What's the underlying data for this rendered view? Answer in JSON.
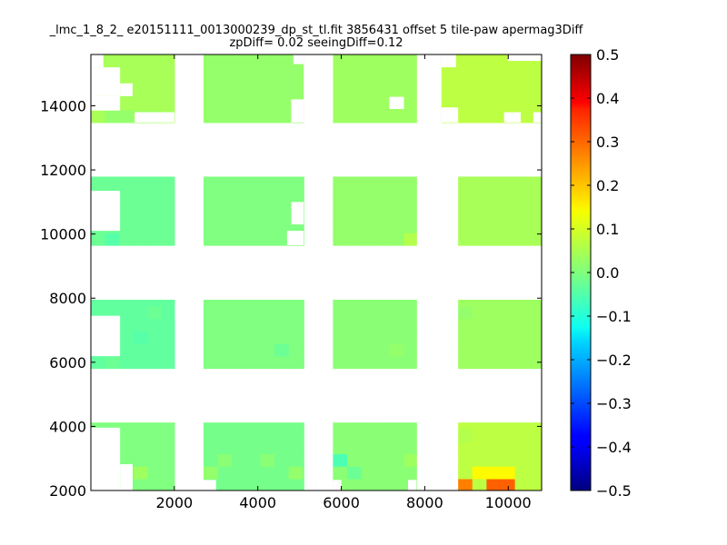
{
  "chart_data": {
    "type": "heatmap",
    "title": "_lmc_1_8_2_ e20151111_0013000239_dp_st_tl.fit 3856431 offset 5 tile-paw apermag3Diff",
    "subtitle": "zpDiff= 0.02 seeingDiff=0.12",
    "xlabel": "",
    "ylabel": "",
    "xlim": [
      0,
      10800
    ],
    "ylim": [
      2000,
      15600
    ],
    "x_ticks": [
      2000,
      4000,
      6000,
      8000,
      10000
    ],
    "y_ticks": [
      2000,
      4000,
      6000,
      8000,
      10000,
      12000,
      14000
    ],
    "colorbar": {
      "colormap": "jet",
      "range": [
        -0.5,
        0.5
      ],
      "ticks": [
        "0.5",
        "0.4",
        "0.3",
        "0.2",
        "0.1",
        "0.0",
        "−0.1",
        "−0.2",
        "−0.3",
        "−0.4",
        "−0.5"
      ]
    },
    "cell_size": [
      340,
      390
    ],
    "default_value": 0.02,
    "detectors": [
      {
        "x": [
          0,
          2000
        ],
        "y": [
          1980,
          4120
        ],
        "value": 0.0
      },
      {
        "x": [
          2700,
          5100
        ],
        "y": [
          1980,
          4120
        ],
        "value": -0.01
      },
      {
        "x": [
          5800,
          7800
        ],
        "y": [
          1980,
          4120
        ],
        "value": 0.01
      },
      {
        "x": [
          8800,
          10800
        ],
        "y": [
          1980,
          4120
        ],
        "value": 0.06
      },
      {
        "x": [
          0,
          2000
        ],
        "y": [
          5810,
          7950
        ],
        "value": -0.03
      },
      {
        "x": [
          2700,
          5100
        ],
        "y": [
          5810,
          7950
        ],
        "value": 0.0
      },
      {
        "x": [
          5800,
          7800
        ],
        "y": [
          5810,
          7950
        ],
        "value": 0.01
      },
      {
        "x": [
          8800,
          10800
        ],
        "y": [
          5810,
          7950
        ],
        "value": 0.03
      },
      {
        "x": [
          0,
          2000
        ],
        "y": [
          9650,
          11790
        ],
        "value": -0.02
      },
      {
        "x": [
          2700,
          5100
        ],
        "y": [
          9650,
          11790
        ],
        "value": 0.0
      },
      {
        "x": [
          5800,
          7800
        ],
        "y": [
          9650,
          11790
        ],
        "value": 0.02
      },
      {
        "x": [
          8800,
          10800
        ],
        "y": [
          9650,
          11790
        ],
        "value": 0.04
      },
      {
        "x": [
          0,
          2000
        ],
        "y": [
          13480,
          15620
        ],
        "value": 0.04
      },
      {
        "x": [
          2700,
          5100
        ],
        "y": [
          13480,
          15620
        ],
        "value": 0.02
      },
      {
        "x": [
          5800,
          7800
        ],
        "y": [
          13480,
          15620
        ],
        "value": 0.03
      },
      {
        "x": [
          8400,
          10800
        ],
        "y": [
          13480,
          15620
        ],
        "value": 0.06
      }
    ],
    "masked_regions": [
      {
        "x": [
          0,
          300
        ],
        "y": [
          15200,
          15620
        ]
      },
      {
        "x": [
          0,
          700
        ],
        "y": [
          14300,
          15200
        ]
      },
      {
        "x": [
          0,
          700
        ],
        "y": [
          13850,
          14300
        ]
      },
      {
        "x": [
          1050,
          2000
        ],
        "y": [
          13480,
          13800
        ]
      },
      {
        "x": [
          700,
          1000
        ],
        "y": [
          14300,
          14700
        ]
      },
      {
        "x": [
          4850,
          5100
        ],
        "y": [
          15300,
          15620
        ]
      },
      {
        "x": [
          5100,
          5800
        ],
        "y": [
          13480,
          15620
        ]
      },
      {
        "x": [
          4800,
          5100
        ],
        "y": [
          13480,
          14200
        ]
      },
      {
        "x": [
          7150,
          7500
        ],
        "y": [
          13900,
          14280
        ]
      },
      {
        "x": [
          8400,
          8750
        ],
        "y": [
          15200,
          15620
        ]
      },
      {
        "x": [
          8400,
          8800
        ],
        "y": [
          13480,
          13950
        ]
      },
      {
        "x": [
          10000,
          10800
        ],
        "y": [
          15400,
          15620
        ]
      },
      {
        "x": [
          9900,
          10300
        ],
        "y": [
          13480,
          13800
        ]
      },
      {
        "x": [
          10600,
          10800
        ],
        "y": [
          13480,
          13800
        ]
      },
      {
        "x": [
          0,
          700
        ],
        "y": [
          10100,
          11350
        ]
      },
      {
        "x": [
          4800,
          5100
        ],
        "y": [
          10300,
          11000
        ]
      },
      {
        "x": [
          4700,
          5100
        ],
        "y": [
          9650,
          10100
        ]
      },
      {
        "x": [
          0,
          700
        ],
        "y": [
          6190,
          7450
        ]
      },
      {
        "x": [
          0,
          700
        ],
        "y": [
          1980,
          3960
        ]
      },
      {
        "x": [
          700,
          1000
        ],
        "y": [
          2000,
          2820
        ]
      },
      {
        "x": [
          2700,
          3000
        ],
        "y": [
          1980,
          2330
        ]
      },
      {
        "x": [
          5800,
          6000
        ],
        "y": [
          1980,
          2330
        ]
      },
      {
        "x": [
          7600,
          7800
        ],
        "y": [
          1980,
          2330
        ]
      }
    ],
    "cell_values": [
      {
        "x": 8800,
        "y": 1980,
        "value": 0.25
      },
      {
        "x": 9140,
        "y": 2370,
        "value": 0.13
      },
      {
        "x": 9480,
        "y": 2370,
        "value": 0.13
      },
      {
        "x": 9820,
        "y": 2370,
        "value": 0.13
      },
      {
        "x": 9480,
        "y": 1980,
        "value": 0.28
      },
      {
        "x": 9820,
        "y": 1980,
        "value": 0.28
      },
      {
        "x": 10460,
        "y": 1980,
        "value": -0.07
      },
      {
        "x": 10120,
        "y": 2370,
        "value": 0.08
      },
      {
        "x": 10460,
        "y": 2370,
        "value": 0.09
      },
      {
        "x": 10460,
        "y": 2760,
        "value": 0.1
      },
      {
        "x": 10460,
        "y": 3150,
        "value": 0.08
      },
      {
        "x": 10120,
        "y": 3150,
        "value": 0.07
      },
      {
        "x": 10120,
        "y": 3540,
        "value": 0.09
      },
      {
        "x": 1020,
        "y": 2370,
        "value": 0.03
      },
      {
        "x": 340,
        "y": 3960,
        "value": 0.04
      },
      {
        "x": 1020,
        "y": 3570,
        "value": 0.03
      },
      {
        "x": 1360,
        "y": 3180,
        "value": 0.02
      },
      {
        "x": 2700,
        "y": 2370,
        "value": 0.02
      },
      {
        "x": 3040,
        "y": 2760,
        "value": 0.01
      },
      {
        "x": 3720,
        "y": 3180,
        "value": -0.02
      },
      {
        "x": 4060,
        "y": 2760,
        "value": 0.01
      },
      {
        "x": 4400,
        "y": 3570,
        "value": 0.0
      },
      {
        "x": 4740,
        "y": 2370,
        "value": 0.02
      },
      {
        "x": 5800,
        "y": 2760,
        "value": -0.05
      },
      {
        "x": 6140,
        "y": 2370,
        "value": -0.02
      },
      {
        "x": 6480,
        "y": 3180,
        "value": 0.0
      },
      {
        "x": 7160,
        "y": 3570,
        "value": 0.03
      },
      {
        "x": 7500,
        "y": 2760,
        "value": 0.03
      },
      {
        "x": 8800,
        "y": 3540,
        "value": 0.05
      },
      {
        "x": 9480,
        "y": 3540,
        "value": 0.06
      },
      {
        "x": 340,
        "y": 5810,
        "value": -0.02
      },
      {
        "x": 1020,
        "y": 6590,
        "value": -0.04
      },
      {
        "x": 1360,
        "y": 7370,
        "value": -0.02
      },
      {
        "x": 2700,
        "y": 7430,
        "value": -0.02
      },
      {
        "x": 3040,
        "y": 6600,
        "value": 0.01
      },
      {
        "x": 3720,
        "y": 6600,
        "value": 0.02
      },
      {
        "x": 4400,
        "y": 6200,
        "value": -0.02
      },
      {
        "x": 4740,
        "y": 7550,
        "value": 0.06
      },
      {
        "x": 6140,
        "y": 6600,
        "value": 0.0
      },
      {
        "x": 6820,
        "y": 7000,
        "value": 0.0
      },
      {
        "x": 7160,
        "y": 6200,
        "value": 0.02
      },
      {
        "x": 8800,
        "y": 7370,
        "value": 0.02
      },
      {
        "x": 9480,
        "y": 6590,
        "value": 0.03
      },
      {
        "x": 10120,
        "y": 6590,
        "value": 0.05
      },
      {
        "x": 10460,
        "y": 6200,
        "value": 0.06
      },
      {
        "x": 10120,
        "y": 7370,
        "value": 0.04
      },
      {
        "x": 340,
        "y": 9650,
        "value": -0.04
      },
      {
        "x": 680,
        "y": 11400,
        "value": -0.03
      },
      {
        "x": 1020,
        "y": 10050,
        "value": -0.03
      },
      {
        "x": 1360,
        "y": 10800,
        "value": -0.02
      },
      {
        "x": 2700,
        "y": 10440,
        "value": 0.0
      },
      {
        "x": 3040,
        "y": 11020,
        "value": 0.01
      },
      {
        "x": 3720,
        "y": 11000,
        "value": -0.02
      },
      {
        "x": 4060,
        "y": 11400,
        "value": -0.03
      },
      {
        "x": 4400,
        "y": 10400,
        "value": -0.01
      },
      {
        "x": 4740,
        "y": 11380,
        "value": 0.03
      },
      {
        "x": 5800,
        "y": 10050,
        "value": 0.03
      },
      {
        "x": 6140,
        "y": 11000,
        "value": 0.03
      },
      {
        "x": 6480,
        "y": 10400,
        "value": 0.01
      },
      {
        "x": 7160,
        "y": 10800,
        "value": 0.04
      },
      {
        "x": 7500,
        "y": 9650,
        "value": 0.05
      },
      {
        "x": 8800,
        "y": 11000,
        "value": 0.03
      },
      {
        "x": 9480,
        "y": 10400,
        "value": 0.03
      },
      {
        "x": 10120,
        "y": 11000,
        "value": 0.05
      },
      {
        "x": 10460,
        "y": 10800,
        "value": 0.06
      },
      {
        "x": 340,
        "y": 13480,
        "value": 0.02
      },
      {
        "x": 680,
        "y": 13480,
        "value": 0.02
      },
      {
        "x": 1020,
        "y": 13480,
        "value": 0.03
      },
      {
        "x": 1360,
        "y": 13480,
        "value": 0.03
      },
      {
        "x": 1020,
        "y": 14700,
        "value": 0.05
      },
      {
        "x": 2700,
        "y": 14300,
        "value": 0.04
      },
      {
        "x": 3040,
        "y": 15240,
        "value": 0.02
      },
      {
        "x": 3720,
        "y": 14300,
        "value": -0.01
      },
      {
        "x": 4060,
        "y": 14700,
        "value": 0.0
      },
      {
        "x": 4400,
        "y": 15240,
        "value": 0.0
      },
      {
        "x": 4740,
        "y": 14700,
        "value": 0.02
      },
      {
        "x": 5800,
        "y": 15240,
        "value": 0.03
      },
      {
        "x": 6140,
        "y": 14300,
        "value": 0.02
      },
      {
        "x": 6820,
        "y": 14700,
        "value": 0.04
      },
      {
        "x": 7500,
        "y": 15240,
        "value": 0.04
      },
      {
        "x": 8800,
        "y": 14300,
        "value": 0.06
      },
      {
        "x": 9480,
        "y": 15240,
        "value": 0.07
      },
      {
        "x": 10120,
        "y": 14300,
        "value": 0.06
      }
    ]
  }
}
